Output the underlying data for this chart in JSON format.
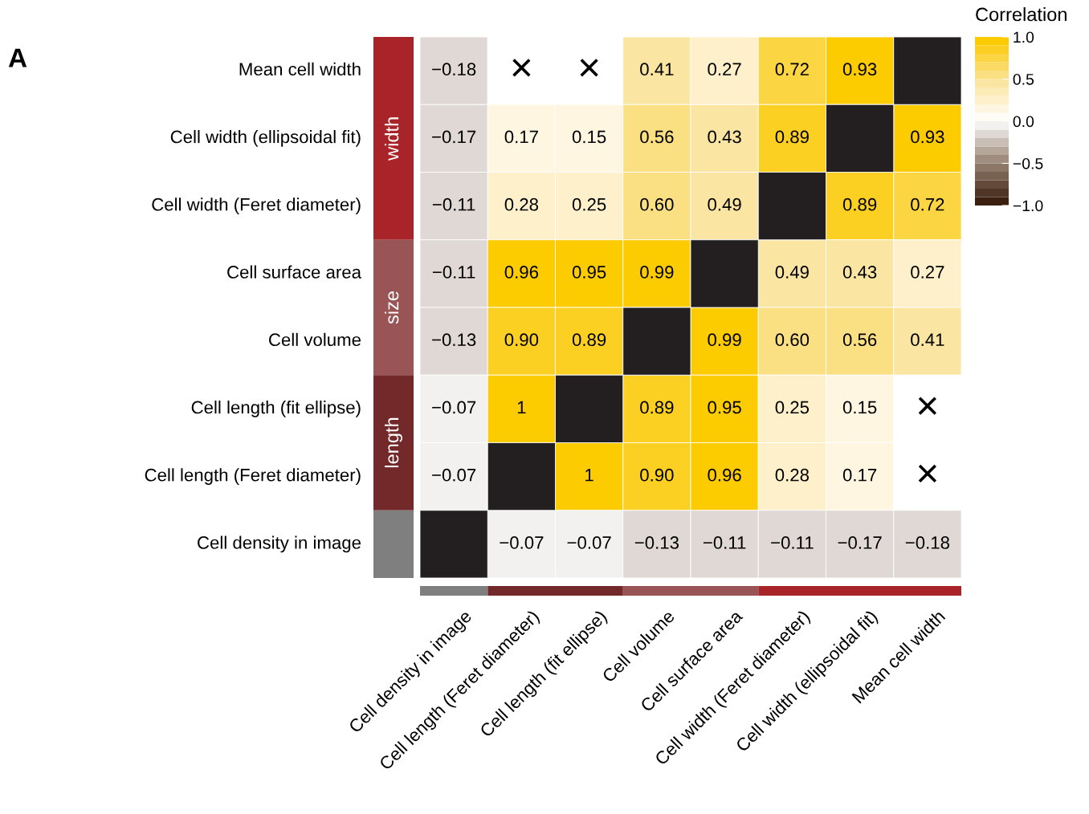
{
  "chart_data": {
    "type": "heatmap",
    "clabel": "Correlation",
    "annotations": [
      "A",
      "width",
      "size",
      "length"
    ],
    "categories": [
      "Cell density in image",
      "Cell length (Feret diameter)",
      "Cell length (fit ellipse)",
      "Cell volume",
      "Cell surface area",
      "Cell width (Feret diameter)",
      "Cell width (ellipsoidal fit)",
      "Mean cell width"
    ],
    "y_categories": [
      "Mean cell width",
      "Cell width (ellipsoidal fit)",
      "Cell width (Feret diameter)",
      "Cell surface area",
      "Cell volume",
      "Cell length (fit ellipse)",
      "Cell length (Feret diameter)",
      "Cell density in image"
    ],
    "cells": [
      [
        -0.18,
        null,
        null,
        0.41,
        0.27,
        0.72,
        0.93,
        null
      ],
      [
        -0.17,
        0.17,
        0.15,
        0.56,
        0.43,
        0.89,
        null,
        0.93
      ],
      [
        -0.11,
        0.28,
        0.25,
        0.6,
        0.49,
        null,
        0.89,
        0.72
      ],
      [
        -0.11,
        0.96,
        0.95,
        0.99,
        null,
        0.49,
        0.43,
        0.27
      ],
      [
        -0.13,
        0.9,
        0.89,
        null,
        0.99,
        0.6,
        0.56,
        0.41
      ],
      [
        -0.07,
        1,
        null,
        0.89,
        0.95,
        0.25,
        0.15,
        null
      ],
      [
        -0.07,
        null,
        1,
        0.9,
        0.96,
        0.28,
        0.17,
        null
      ],
      [
        null,
        -0.07,
        -0.07,
        -0.13,
        -0.11,
        -0.11,
        -0.17,
        -0.18
      ]
    ],
    "cell_labels": [
      [
        "−0.18",
        "×",
        "×",
        "0.41",
        "0.27",
        "0.72",
        "0.93",
        null
      ],
      [
        "−0.17",
        "0.17",
        "0.15",
        "0.56",
        "0.43",
        "0.89",
        null,
        "0.93"
      ],
      [
        "−0.11",
        "0.28",
        "0.25",
        "0.60",
        "0.49",
        null,
        "0.89",
        "0.72"
      ],
      [
        "−0.11",
        "0.96",
        "0.95",
        "0.99",
        null,
        "0.49",
        "0.43",
        "0.27"
      ],
      [
        "−0.13",
        "0.90",
        "0.89",
        null,
        "0.99",
        "0.60",
        "0.56",
        "0.41"
      ],
      [
        "−0.07",
        "1",
        null,
        "0.89",
        "0.95",
        "0.25",
        "0.15",
        "×"
      ],
      [
        "−0.07",
        null,
        "1",
        "0.90",
        "0.96",
        "0.28",
        "0.17",
        "×"
      ],
      [
        null,
        "−0.07",
        "−0.07",
        "−0.13",
        "−0.11",
        "−0.11",
        "−0.17",
        "−0.18"
      ]
    ],
    "clim": [
      -1,
      1
    ],
    "cticks": [
      {
        "value": -1,
        "label": "−1.0"
      },
      {
        "value": -0.5,
        "label": "−0.5"
      },
      {
        "value": 0,
        "label": "0.0"
      },
      {
        "value": 0.5,
        "label": "0.5"
      },
      {
        "value": 1,
        "label": "1.0"
      }
    ]
  }
}
